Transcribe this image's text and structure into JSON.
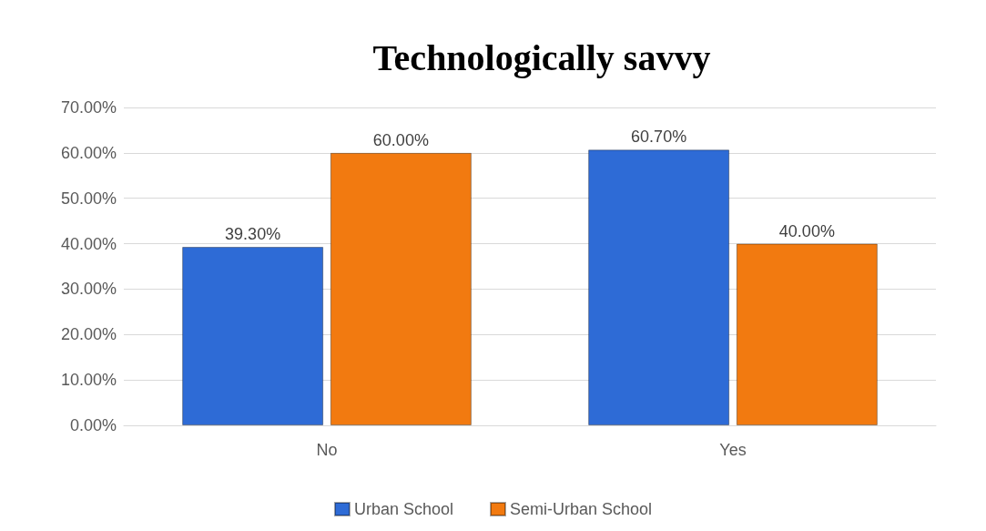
{
  "chart_data": {
    "type": "bar",
    "title": "Technologically savvy",
    "categories": [
      "No",
      "Yes"
    ],
    "series": [
      {
        "name": "Urban School",
        "color": "#2e6bd6",
        "values": [
          39.3,
          60.7
        ],
        "value_labels": [
          "39.30%",
          "60.70%"
        ]
      },
      {
        "name": "Semi-Urban School",
        "color": "#f27a10",
        "values": [
          60.0,
          40.0
        ],
        "value_labels": [
          "60.00%",
          "40.00%"
        ]
      }
    ],
    "ylim": [
      0,
      70
    ],
    "yticks": [
      {
        "value": 0,
        "label": "0.00%"
      },
      {
        "value": 10,
        "label": "10.00%"
      },
      {
        "value": 20,
        "label": "20.00%"
      },
      {
        "value": 30,
        "label": "30.00%"
      },
      {
        "value": 40,
        "label": "40.00%"
      },
      {
        "value": 50,
        "label": "50.00%"
      },
      {
        "value": 60,
        "label": "60.00%"
      },
      {
        "value": 70,
        "label": "70.00%"
      }
    ],
    "grid": "y",
    "legend": "bottom"
  }
}
